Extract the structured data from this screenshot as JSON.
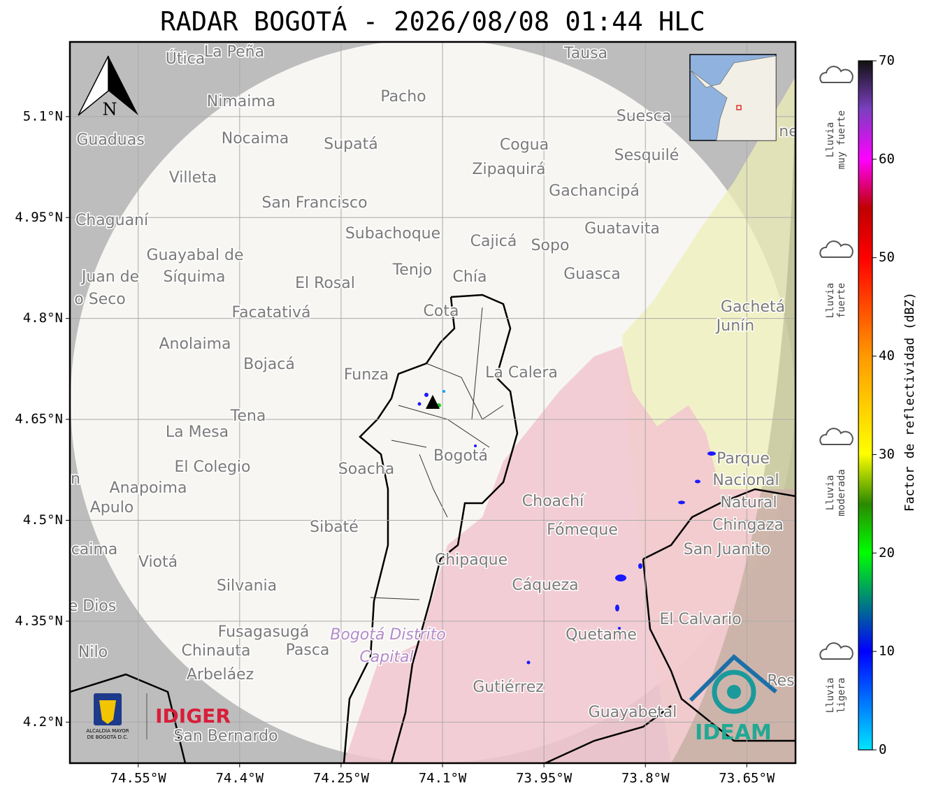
{
  "title": "RADAR BOGOTÁ - 2026/08/08 01:44 HLC",
  "map": {
    "xlim": [
      -74.651,
      -73.578
    ],
    "ylim": [
      4.139,
      5.211
    ],
    "xticks": [
      {
        "value": -74.55,
        "label": "74.55°W"
      },
      {
        "value": -74.4,
        "label": "74.4°W"
      },
      {
        "value": -74.25,
        "label": "74.25°W"
      },
      {
        "value": -74.1,
        "label": "74.1°W"
      },
      {
        "value": -73.95,
        "label": "73.95°W"
      },
      {
        "value": -73.8,
        "label": "73.8°W"
      },
      {
        "value": -73.65,
        "label": "73.65°W"
      }
    ],
    "yticks": [
      {
        "value": 5.1,
        "label": "5.1°N"
      },
      {
        "value": 4.95,
        "label": "4.95°N"
      },
      {
        "value": 4.8,
        "label": "4.8°N"
      },
      {
        "value": 4.65,
        "label": "4.65°N"
      },
      {
        "value": 4.5,
        "label": "4.5°N"
      },
      {
        "value": 4.35,
        "label": "4.35°N"
      },
      {
        "value": 4.2,
        "label": "4.2°N"
      }
    ],
    "grid": true,
    "north": "N",
    "places": [
      "La Peña",
      "Útica",
      "Tausa",
      "Pacho",
      "Nimaima",
      "Guaduas",
      "Nocaima",
      "Supatá",
      "Cogua",
      "Suesca",
      "Sesquilé",
      "Zipaquirá",
      "Villeta",
      "Gachancipá",
      "San Francisco",
      "Chaguaní",
      "Guatavita",
      "Subachoque",
      "Cajicá",
      "Sopo",
      "Guayabal de",
      "Síquima",
      "Juan de",
      "Tenjo",
      "Chía",
      "Guasca",
      "El Rosal",
      "o Seco",
      "Facatativá",
      "Cota",
      "Gachetá",
      "Junín",
      "Anolaima",
      "Bojacá",
      "Funza",
      "La Calera",
      "Tena",
      "La Mesa",
      "El Colegio",
      "Soacha",
      "Bogotá",
      "Parque",
      "Nacional",
      "Natural",
      "Chingaza",
      "Anapoima",
      "Apulo",
      "Choachí",
      "Sibaté",
      "Fómeque",
      "San Juanito",
      "caima",
      "Viotá",
      "Chipaque",
      "Cáqueza",
      "Silvania",
      "de Dios",
      "El Calvario",
      "Quetame",
      "Fusagasugá",
      "Bogotá Distrito",
      "Capital",
      "Nilo",
      "Chinauta",
      "Pasca",
      "Arbeláez",
      "Gutiérrez",
      "Guayabetal",
      "San Bernardo",
      "Res",
      "ne",
      "n"
    ]
  },
  "colorbar": {
    "label": "Factor de reflectividad (dBZ)",
    "lim": [
      0,
      70
    ],
    "ticks": [
      0,
      10,
      20,
      30,
      40,
      50,
      60,
      70
    ]
  },
  "legend": [
    [
      "Lluvia",
      "muy fuerte"
    ],
    [
      "Lluvia",
      "fuerte"
    ],
    [
      "Lluvia",
      "moderada"
    ],
    [
      "Lluvia",
      "ligera"
    ]
  ],
  "logos": {
    "alcaldia": [
      "ALCALDÍA MAYOR",
      "DE BOGOTÁ D.C."
    ],
    "idiger": "IDIGER",
    "ideam": "IDEAM"
  }
}
